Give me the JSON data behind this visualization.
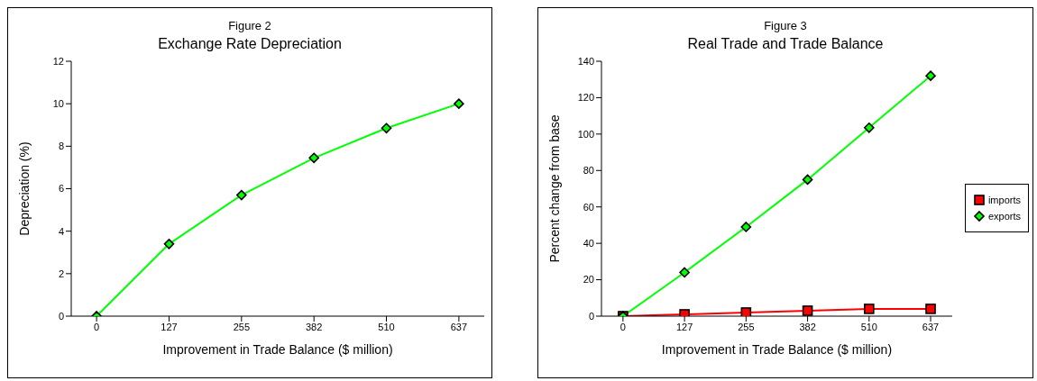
{
  "chart_data": [
    {
      "type": "line",
      "title": "Figure 2",
      "subtitle": "Exchange Rate Depreciation",
      "xlabel": "Improvement in Trade Balance ($ million)",
      "ylabel": "Depreciation (%)",
      "categories": [
        "0",
        "127",
        "255",
        "382",
        "510",
        "637"
      ],
      "ylim": [
        0,
        12
      ],
      "yticks": [
        0,
        2,
        4,
        6,
        8,
        10,
        12
      ],
      "marker": "diamond",
      "series": [
        {
          "color": "#00ff00",
          "values": [
            0,
            3.4,
            5.7,
            7.45,
            8.85,
            10.0
          ]
        }
      ]
    },
    {
      "type": "line",
      "title": "Figure 3",
      "subtitle": "Real Trade and Trade Balance",
      "xlabel": "Improvement in Trade Balance ($ million)",
      "ylabel": "Percent change from base",
      "categories": [
        "0",
        "127",
        "255",
        "382",
        "510",
        "637"
      ],
      "ylim": [
        0,
        140
      ],
      "yticks": [
        0,
        20,
        40,
        60,
        80,
        100,
        120,
        140
      ],
      "legend": "right",
      "series": [
        {
          "name": "imports",
          "color": "#ff0000",
          "marker": "square",
          "values": [
            0,
            1,
            2,
            3,
            4,
            4
          ]
        },
        {
          "name": "exports",
          "color": "#00ff00",
          "marker": "diamond",
          "values": [
            0,
            24,
            49,
            75,
            103.5,
            132
          ]
        }
      ]
    }
  ]
}
